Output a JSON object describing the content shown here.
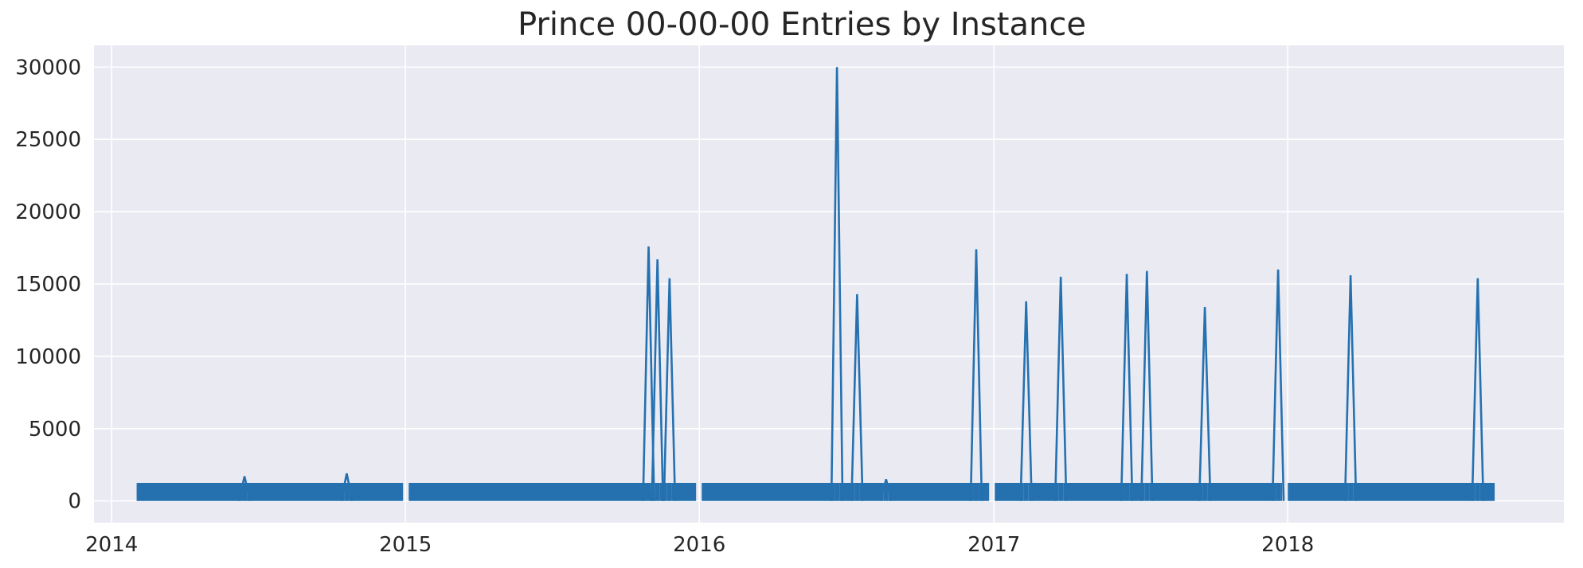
{
  "chart_data": {
    "type": "line",
    "title": "Prince 00-00-00 Entries by Instance",
    "xlabel": "",
    "ylabel": "",
    "x_ticks": [
      "2014",
      "2015",
      "2016",
      "2017",
      "2018"
    ],
    "y_ticks": [
      "0",
      "5000",
      "10000",
      "15000",
      "20000",
      "25000",
      "30000"
    ],
    "xlim": [
      "2013-12-10",
      "2018-12-10"
    ],
    "ylim": [
      -1500,
      31500
    ],
    "grid": true,
    "legend": "none",
    "colors": {
      "line": "#2571b0",
      "plot_bg": "#eaeaf2",
      "grid": "#ffffff"
    },
    "baseline": {
      "start": "2014-02-01",
      "end": "2018-09-15",
      "min": 0,
      "max": 1250
    },
    "gaps": [
      {
        "from": "2014-12-29",
        "to": "2015-01-05"
      },
      {
        "from": "2015-12-28",
        "to": "2016-01-04"
      },
      {
        "from": "2016-12-26",
        "to": "2017-01-02"
      },
      {
        "from": "2017-12-25",
        "to": "2018-01-01"
      }
    ],
    "spikes": [
      {
        "x": "2014-06-15",
        "y": 1700
      },
      {
        "x": "2014-10-20",
        "y": 1900
      },
      {
        "x": "2015-10-30",
        "y": 17600
      },
      {
        "x": "2015-11-10",
        "y": 16700
      },
      {
        "x": "2015-11-25",
        "y": 15400
      },
      {
        "x": "2016-06-20",
        "y": 30000
      },
      {
        "x": "2016-07-15",
        "y": 14300
      },
      {
        "x": "2016-08-20",
        "y": 1500
      },
      {
        "x": "2016-12-10",
        "y": 17400
      },
      {
        "x": "2017-02-10",
        "y": 13800
      },
      {
        "x": "2017-03-25",
        "y": 15500
      },
      {
        "x": "2017-06-15",
        "y": 15700
      },
      {
        "x": "2017-07-10",
        "y": 15900
      },
      {
        "x": "2017-09-20",
        "y": 13400
      },
      {
        "x": "2017-12-20",
        "y": 16000
      },
      {
        "x": "2018-03-20",
        "y": 15600
      },
      {
        "x": "2018-08-25",
        "y": 15400
      }
    ]
  }
}
